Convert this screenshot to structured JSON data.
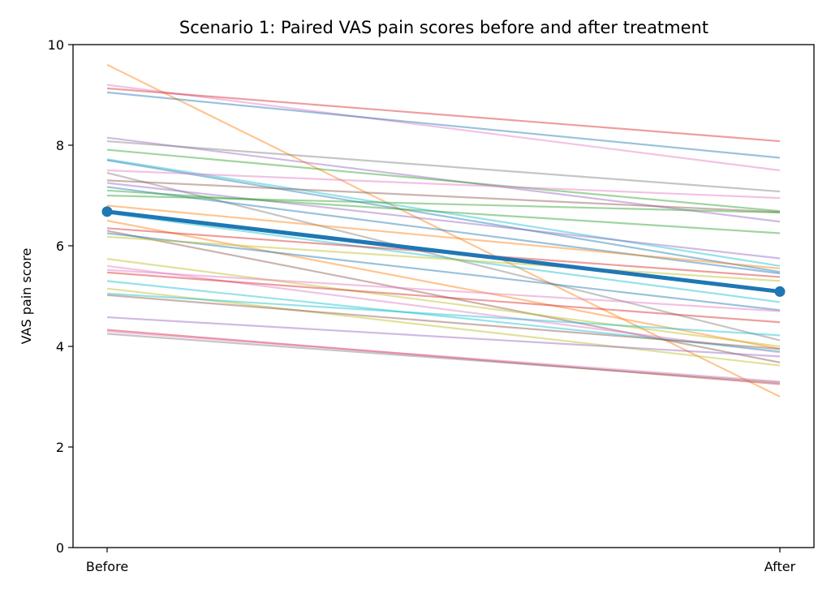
{
  "chart_data": {
    "type": "line",
    "title": "Scenario 1: Paired VAS pain scores before and after treatment",
    "xlabel": "",
    "ylabel": "VAS pain score",
    "categories": [
      "Before",
      "After"
    ],
    "ylim": [
      0,
      10
    ],
    "yticks": [
      "0",
      "2",
      "4",
      "6",
      "8",
      "10"
    ],
    "grid": false,
    "legend": "none",
    "mean_series": {
      "values": [
        6.68,
        5.09
      ],
      "color": "#1f77b4"
    },
    "subjects": [
      {
        "values": [
          9.6,
          3.0
        ],
        "color": "#ff7f0e"
      },
      {
        "values": [
          9.2,
          7.5
        ],
        "color": "#e377c2"
      },
      {
        "values": [
          9.13,
          8.08
        ],
        "color": "#d62728"
      },
      {
        "values": [
          9.05,
          7.75
        ],
        "color": "#1f77b4"
      },
      {
        "values": [
          8.15,
          6.48
        ],
        "color": "#9467bd"
      },
      {
        "values": [
          8.08,
          7.08
        ],
        "color": "#7f7f7f"
      },
      {
        "values": [
          7.91,
          6.69
        ],
        "color": "#2ca02c"
      },
      {
        "values": [
          7.72,
          5.6
        ],
        "color": "#17becf"
      },
      {
        "values": [
          7.7,
          5.48
        ],
        "color": "#1f77b4"
      },
      {
        "values": [
          7.5,
          6.95
        ],
        "color": "#e377c2"
      },
      {
        "values": [
          7.45,
          4.12
        ],
        "color": "#7f7f7f"
      },
      {
        "values": [
          7.3,
          6.67
        ],
        "color": "#8c564b"
      },
      {
        "values": [
          7.25,
          5.75
        ],
        "color": "#9467bd"
      },
      {
        "values": [
          7.17,
          5.45
        ],
        "color": "#1f77b4"
      },
      {
        "values": [
          7.1,
          6.25
        ],
        "color": "#2ca02c"
      },
      {
        "values": [
          7.0,
          6.66
        ],
        "color": "#2ca02c"
      },
      {
        "values": [
          6.8,
          5.55
        ],
        "color": "#ff7f0e"
      },
      {
        "values": [
          6.65,
          4.88
        ],
        "color": "#17becf"
      },
      {
        "values": [
          6.5,
          3.95
        ],
        "color": "#ff7f0e"
      },
      {
        "values": [
          6.35,
          5.38
        ],
        "color": "#d62728"
      },
      {
        "values": [
          6.3,
          3.68
        ],
        "color": "#8c564b"
      },
      {
        "values": [
          6.25,
          4.72
        ],
        "color": "#1f77b4"
      },
      {
        "values": [
          6.18,
          5.3
        ],
        "color": "#bcbd22"
      },
      {
        "values": [
          5.74,
          4.0
        ],
        "color": "#bcbd22"
      },
      {
        "values": [
          5.6,
          3.88
        ],
        "color": "#e377c2"
      },
      {
        "values": [
          5.52,
          4.7
        ],
        "color": "#e377c2"
      },
      {
        "values": [
          5.47,
          4.48
        ],
        "color": "#d62728"
      },
      {
        "values": [
          5.3,
          3.9
        ],
        "color": "#17becf"
      },
      {
        "values": [
          5.15,
          3.62
        ],
        "color": "#bcbd22"
      },
      {
        "values": [
          5.05,
          4.22
        ],
        "color": "#17becf"
      },
      {
        "values": [
          5.02,
          3.95
        ],
        "color": "#8c564b"
      },
      {
        "values": [
          4.58,
          3.8
        ],
        "color": "#9467bd"
      },
      {
        "values": [
          4.33,
          3.25
        ],
        "color": "#d62728"
      },
      {
        "values": [
          4.3,
          3.3
        ],
        "color": "#e377c2"
      },
      {
        "values": [
          4.25,
          3.28
        ],
        "color": "#7f7f7f"
      }
    ]
  }
}
